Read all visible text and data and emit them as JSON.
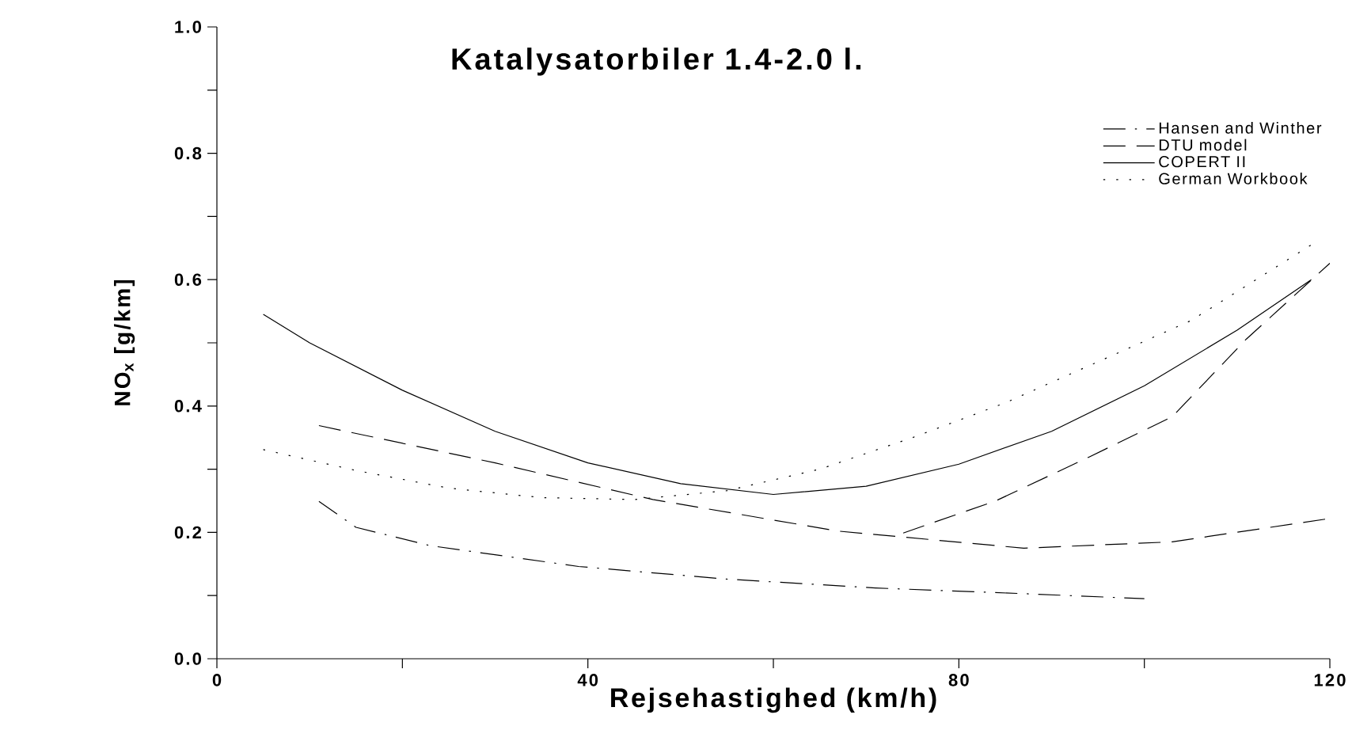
{
  "chart_data": {
    "type": "line",
    "title": "Katalysatorbiler 1.4-2.0 l.",
    "xlabel": "Rejsehastighed (km/h)",
    "ylabel": "NO$_{x}$ [g/km]",
    "xlim": [
      0,
      120
    ],
    "ylim": [
      0,
      1.0
    ],
    "xticks": [
      0,
      {
        "value": 20,
        "label": null
      },
      40,
      {
        "value": 60,
        "label": null
      },
      80,
      {
        "value": 100,
        "label": null
      },
      120
    ],
    "yticks": [
      {
        "value": 0,
        "label": "0.0"
      },
      {
        "value": 0.1,
        "label": null
      },
      0.2,
      {
        "value": 0.3,
        "label": null
      },
      0.4,
      {
        "value": 0.5,
        "label": null
      },
      0.6,
      {
        "value": 0.7,
        "label": null
      },
      0.8,
      {
        "value": 0.9,
        "label": null
      },
      {
        "value": 1.0,
        "label": "1.0"
      }
    ],
    "grid": false,
    "legend": "top right",
    "marker": "none",
    "series": [
      {
        "name": "Hansen and Winther",
        "color": "#000000",
        "line_style": "dashdotted",
        "x": [
          11,
          15,
          23,
          39,
          55,
          71,
          87,
          100
        ],
        "values": [
          0.249,
          0.208,
          0.179,
          0.146,
          0.126,
          0.112,
          0.103,
          0.095
        ]
      },
      {
        "name": "DTU model",
        "color": "#000000",
        "line_style": "dashed",
        "x": [
          11,
          30,
          47,
          67,
          87,
          103,
          120
        ],
        "values": [
          0.369,
          0.31,
          0.252,
          0.202,
          0.175,
          0.185,
          0.222
        ]
      },
      {
        "color": "#000000",
        "line_style": "dashed",
        "x": [
          74,
          84,
          94,
          103,
          111,
          120
        ],
        "values": [
          0.199,
          0.25,
          0.319,
          0.383,
          0.506,
          0.626
        ]
      },
      {
        "name": "COPERT II",
        "color": "#000000",
        "line_style": "solid",
        "x": [
          5,
          10,
          20,
          30,
          40,
          50,
          60,
          70,
          80,
          90,
          100,
          110,
          118
        ],
        "values": [
          0.545,
          0.5,
          0.425,
          0.36,
          0.31,
          0.277,
          0.26,
          0.273,
          0.308,
          0.36,
          0.432,
          0.52,
          0.6
        ]
      },
      {
        "name": "German Workbook",
        "color": "#000000",
        "line_style": "dotted",
        "x": [
          5,
          15,
          25,
          35,
          45,
          55,
          65,
          75,
          85,
          95,
          105,
          118
        ],
        "values": [
          0.331,
          0.298,
          0.27,
          0.255,
          0.252,
          0.266,
          0.3,
          0.35,
          0.405,
          0.47,
          0.535,
          0.655
        ]
      }
    ]
  }
}
